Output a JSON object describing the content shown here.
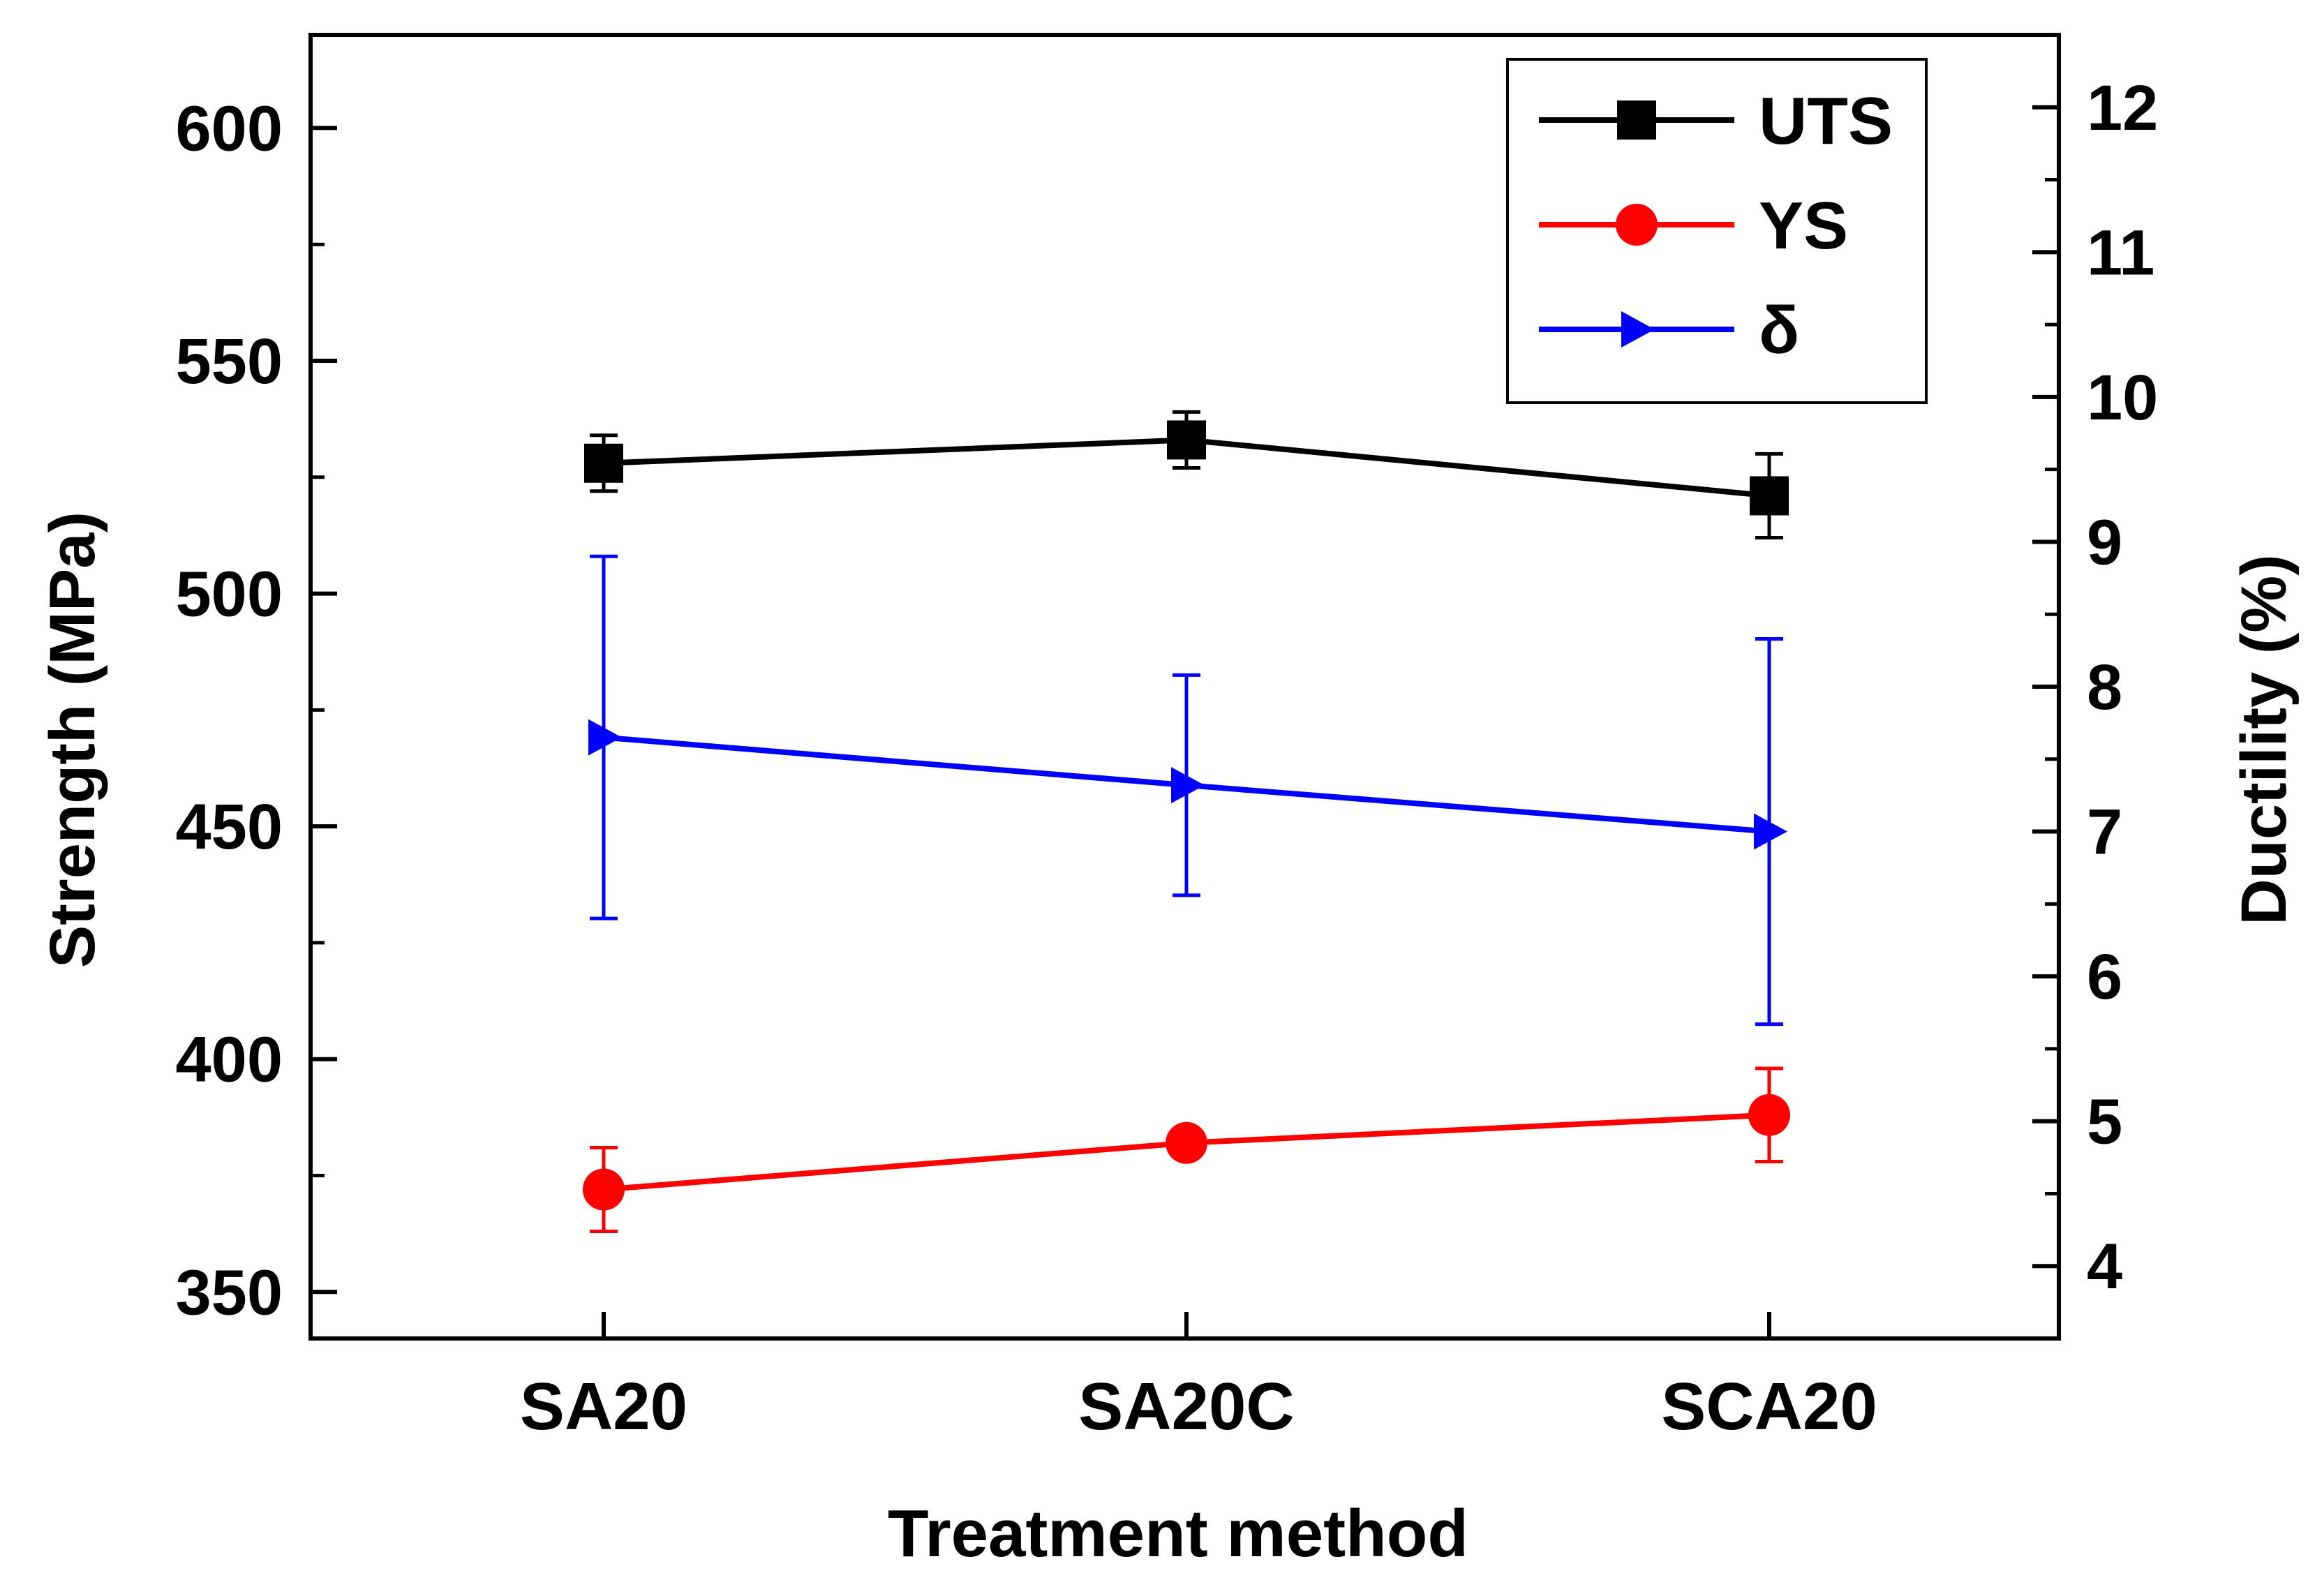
{
  "chart_data": {
    "type": "line",
    "title": "",
    "xlabel": "Treatment method",
    "ylabel": "Strength (MPa)",
    "y2label": "Ductility (%)",
    "categories": [
      "SA20",
      "SA20C",
      "SCA20"
    ],
    "ylim": [
      340,
      620
    ],
    "y2lim": [
      3.5,
      12.5
    ],
    "yticks": [
      350,
      400,
      450,
      500,
      550,
      600
    ],
    "y2ticks": [
      4,
      5,
      6,
      7,
      8,
      9,
      10,
      11,
      12
    ],
    "legend_position": "top-right",
    "series": [
      {
        "name": "UTS",
        "axis": "left",
        "color": "#000000",
        "marker": "square",
        "values": [
          528,
          533,
          521
        ],
        "errors": [
          6,
          6,
          9
        ]
      },
      {
        "name": "YS",
        "axis": "left",
        "color": "#ff0000",
        "marker": "circle",
        "values": [
          372,
          382,
          388
        ],
        "errors": [
          9,
          1,
          10
        ]
      },
      {
        "name": "δ",
        "axis": "right",
        "color": "#0000ff",
        "marker": "triangle-right",
        "values": [
          7.65,
          7.32,
          7.0
        ],
        "errors": [
          1.25,
          0.76,
          1.33
        ]
      }
    ]
  }
}
